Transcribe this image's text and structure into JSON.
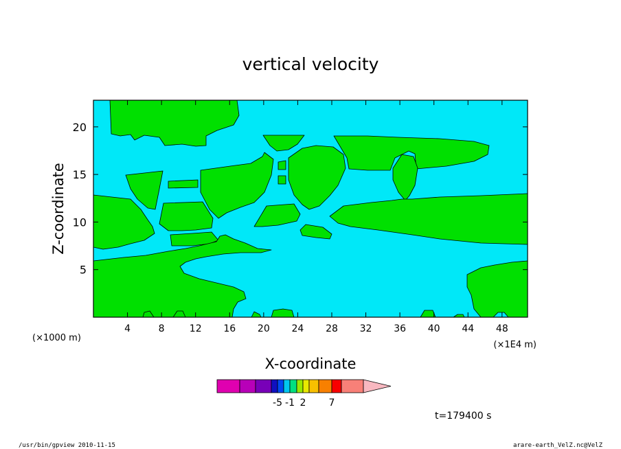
{
  "chart_data": {
    "type": "heatmap",
    "title": "vertical velocity",
    "xlabel": "X-coordinate",
    "ylabel": "Z-coordinate",
    "x_unit_left": "(×1000 m)",
    "x_unit_right": "(×1E4 m)",
    "xlim": [
      0,
      51
    ],
    "ylim": [
      0,
      22.8
    ],
    "x_ticks": [
      4,
      8,
      12,
      16,
      20,
      24,
      28,
      32,
      36,
      40,
      44,
      48
    ],
    "y_ticks": [
      5,
      10,
      15,
      20
    ],
    "grid": false,
    "fill_colors": {
      "background": "#00e8f8",
      "contour_fill": "#00e000"
    },
    "colorbar": {
      "colors": [
        "#e000b0",
        "#b800b8",
        "#7800b8",
        "#1010c0",
        "#0048f0",
        "#00c8f0",
        "#00e080",
        "#98e800",
        "#e8e800",
        "#f8c000",
        "#f88000",
        "#f80000",
        "#f88078",
        "#f8b8c0"
      ],
      "tick_labels": [
        {
          "label": "-5",
          "index": 3
        },
        {
          "label": "-1",
          "index": 5
        },
        {
          "label": "2",
          "index": 7
        },
        {
          "label": "7",
          "index": 10
        }
      ]
    },
    "time_label": "t=179400 s"
  },
  "footer": {
    "left": "/usr/bin/gpview   2010-11-15",
    "right": "arare-earth_VelZ.nc@VelZ"
  }
}
